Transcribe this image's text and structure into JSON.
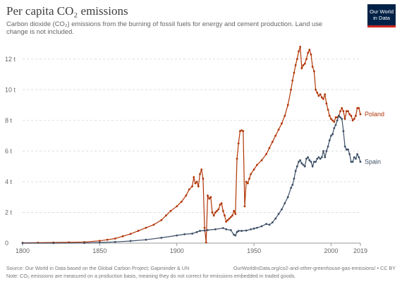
{
  "header": {
    "title": "Per capita CO₂ emissions",
    "subtitle": "Carbon dioxide (CO₂) emissions from the burning of fossil fuels for energy and cement production. Land use change is not included.",
    "logo_line1": "Our World",
    "logo_line2": "in Data"
  },
  "footer": {
    "source": "Source: Our World in Data based on the Global Carbon Project; Gapminder & UN",
    "url": "OurWorldInData.org/co2-and-other-greenhouse-gas-emissions/ • CC BY",
    "note": "Note: CO₂ emissions are measured on a production basis, meaning they do not correct for emissions embedded in traded goods."
  },
  "colors": {
    "poland": "#b13507",
    "spain": "#3c4e66",
    "grid": "#dddddd",
    "logo": "#002147",
    "logo_accent": "#ce261e"
  },
  "chart_data": {
    "type": "line",
    "xlim": [
      1800,
      2019
    ],
    "ylim": [
      0,
      13
    ],
    "x_ticks": [
      1800,
      1850,
      1900,
      1950,
      2000,
      2019
    ],
    "y_ticks": [
      {
        "value": 0,
        "label": "0"
      },
      {
        "value": 2,
        "label": "2 t"
      },
      {
        "value": 4,
        "label": "4 t"
      },
      {
        "value": 6,
        "label": "6 t"
      },
      {
        "value": 8,
        "label": "8 t"
      },
      {
        "value": 10,
        "label": "10 t"
      },
      {
        "value": 12,
        "label": "12 t"
      }
    ],
    "grid": true,
    "series": [
      {
        "name": "Poland",
        "color": "#b13507",
        "points": [
          [
            1800,
            0.02
          ],
          [
            1810,
            0.03
          ],
          [
            1820,
            0.04
          ],
          [
            1830,
            0.05
          ],
          [
            1840,
            0.07
          ],
          [
            1850,
            0.15
          ],
          [
            1855,
            0.22
          ],
          [
            1860,
            0.3
          ],
          [
            1865,
            0.45
          ],
          [
            1870,
            0.6
          ],
          [
            1875,
            0.8
          ],
          [
            1880,
            1.0
          ],
          [
            1885,
            1.2
          ],
          [
            1890,
            1.5
          ],
          [
            1893,
            1.8
          ],
          [
            1896,
            2.1
          ],
          [
            1900,
            2.4
          ],
          [
            1903,
            2.7
          ],
          [
            1906,
            3.1
          ],
          [
            1908,
            3.5
          ],
          [
            1910,
            3.7
          ],
          [
            1911,
            4.3
          ],
          [
            1912,
            3.9
          ],
          [
            1913,
            4.0
          ],
          [
            1914,
            3.7
          ],
          [
            1915,
            4.5
          ],
          [
            1916,
            4.8
          ],
          [
            1917,
            4.2
          ],
          [
            1918,
            1.0
          ],
          [
            1919,
            0.05
          ],
          [
            1920,
            3.1
          ],
          [
            1921,
            2.9
          ],
          [
            1922,
            3.0
          ],
          [
            1923,
            2.0
          ],
          [
            1924,
            1.8
          ],
          [
            1925,
            2.0
          ],
          [
            1926,
            2.1
          ],
          [
            1927,
            2.2
          ],
          [
            1928,
            2.5
          ],
          [
            1929,
            2.6
          ],
          [
            1930,
            2.1
          ],
          [
            1931,
            1.8
          ],
          [
            1932,
            1.4
          ],
          [
            1933,
            1.5
          ],
          [
            1934,
            1.6
          ],
          [
            1935,
            1.7
          ],
          [
            1936,
            1.8
          ],
          [
            1937,
            2.1
          ],
          [
            1938,
            1.9
          ],
          [
            1939,
            5.5
          ],
          [
            1940,
            6.5
          ],
          [
            1941,
            7.3
          ],
          [
            1942,
            7.35
          ],
          [
            1943,
            7.3
          ],
          [
            1944,
            2.4
          ],
          [
            1945,
            4.0
          ],
          [
            1946,
            3.9
          ],
          [
            1947,
            4.2
          ],
          [
            1948,
            4.5
          ],
          [
            1950,
            4.8
          ],
          [
            1952,
            5.1
          ],
          [
            1955,
            5.4
          ],
          [
            1958,
            5.8
          ],
          [
            1960,
            6.2
          ],
          [
            1962,
            6.6
          ],
          [
            1964,
            7.0
          ],
          [
            1966,
            7.4
          ],
          [
            1968,
            7.8
          ],
          [
            1970,
            8.3
          ],
          [
            1972,
            9.0
          ],
          [
            1974,
            10.0
          ],
          [
            1975,
            10.6
          ],
          [
            1976,
            11.1
          ],
          [
            1977,
            11.6
          ],
          [
            1978,
            12.0
          ],
          [
            1979,
            12.5
          ],
          [
            1980,
            12.8
          ],
          [
            1981,
            11.4
          ],
          [
            1982,
            11.6
          ],
          [
            1983,
            11.7
          ],
          [
            1984,
            12.0
          ],
          [
            1985,
            12.4
          ],
          [
            1986,
            12.6
          ],
          [
            1987,
            12.3
          ],
          [
            1988,
            11.5
          ],
          [
            1989,
            11.2
          ],
          [
            1990,
            10.0
          ],
          [
            1991,
            9.8
          ],
          [
            1992,
            9.6
          ],
          [
            1993,
            9.7
          ],
          [
            1994,
            9.5
          ],
          [
            1995,
            9.4
          ],
          [
            1996,
            9.7
          ],
          [
            1997,
            9.1
          ],
          [
            1998,
            8.7
          ],
          [
            1999,
            8.3
          ],
          [
            2000,
            8.1
          ],
          [
            2001,
            8.0
          ],
          [
            2002,
            7.9
          ],
          [
            2003,
            8.2
          ],
          [
            2004,
            8.2
          ],
          [
            2005,
            8.3
          ],
          [
            2006,
            8.6
          ],
          [
            2007,
            8.8
          ],
          [
            2008,
            8.6
          ],
          [
            2009,
            8.1
          ],
          [
            2010,
            8.6
          ],
          [
            2011,
            8.6
          ],
          [
            2012,
            8.4
          ],
          [
            2013,
            8.3
          ],
          [
            2014,
            8.0
          ],
          [
            2015,
            8.1
          ],
          [
            2016,
            8.3
          ],
          [
            2017,
            8.8
          ],
          [
            2018,
            8.8
          ],
          [
            2019,
            8.4
          ]
        ]
      },
      {
        "name": "Spain",
        "color": "#3c4e66",
        "points": [
          [
            1800,
            0.0
          ],
          [
            1820,
            0.0
          ],
          [
            1840,
            0.01
          ],
          [
            1850,
            0.04
          ],
          [
            1860,
            0.08
          ],
          [
            1870,
            0.14
          ],
          [
            1880,
            0.22
          ],
          [
            1890,
            0.35
          ],
          [
            1900,
            0.5
          ],
          [
            1905,
            0.58
          ],
          [
            1910,
            0.62
          ],
          [
            1913,
            0.72
          ],
          [
            1915,
            0.8
          ],
          [
            1918,
            0.82
          ],
          [
            1920,
            0.85
          ],
          [
            1925,
            0.9
          ],
          [
            1930,
            0.98
          ],
          [
            1932,
            0.9
          ],
          [
            1935,
            0.85
          ],
          [
            1937,
            0.55
          ],
          [
            1938,
            0.5
          ],
          [
            1939,
            0.72
          ],
          [
            1940,
            0.8
          ],
          [
            1942,
            0.8
          ],
          [
            1945,
            0.82
          ],
          [
            1948,
            0.9
          ],
          [
            1950,
            0.95
          ],
          [
            1952,
            1.0
          ],
          [
            1955,
            1.1
          ],
          [
            1958,
            1.25
          ],
          [
            1960,
            1.2
          ],
          [
            1962,
            1.35
          ],
          [
            1964,
            1.6
          ],
          [
            1966,
            1.9
          ],
          [
            1968,
            2.2
          ],
          [
            1970,
            2.6
          ],
          [
            1972,
            3.0
          ],
          [
            1974,
            3.6
          ],
          [
            1975,
            3.8
          ],
          [
            1976,
            4.2
          ],
          [
            1977,
            4.7
          ],
          [
            1978,
            5.0
          ],
          [
            1979,
            5.3
          ],
          [
            1980,
            5.4
          ],
          [
            1981,
            5.2
          ],
          [
            1982,
            5.1
          ],
          [
            1983,
            5.0
          ],
          [
            1984,
            5.5
          ],
          [
            1985,
            5.6
          ],
          [
            1986,
            5.4
          ],
          [
            1987,
            5.3
          ],
          [
            1988,
            5.0
          ],
          [
            1989,
            5.3
          ],
          [
            1990,
            5.3
          ],
          [
            1991,
            5.5
          ],
          [
            1992,
            5.6
          ],
          [
            1993,
            5.5
          ],
          [
            1994,
            5.6
          ],
          [
            1995,
            6.0
          ],
          [
            1996,
            5.6
          ],
          [
            1997,
            6.0
          ],
          [
            1998,
            6.3
          ],
          [
            1999,
            6.7
          ],
          [
            2000,
            7.0
          ],
          [
            2001,
            7.1
          ],
          [
            2002,
            7.5
          ],
          [
            2003,
            7.7
          ],
          [
            2004,
            8.0
          ],
          [
            2005,
            8.3
          ],
          [
            2006,
            8.2
          ],
          [
            2007,
            8.1
          ],
          [
            2008,
            7.3
          ],
          [
            2009,
            6.3
          ],
          [
            2010,
            6.1
          ],
          [
            2011,
            6.1
          ],
          [
            2012,
            5.8
          ],
          [
            2013,
            5.3
          ],
          [
            2014,
            5.3
          ],
          [
            2015,
            5.6
          ],
          [
            2016,
            5.5
          ],
          [
            2017,
            5.8
          ],
          [
            2018,
            5.6
          ],
          [
            2019,
            5.3
          ]
        ]
      }
    ]
  }
}
